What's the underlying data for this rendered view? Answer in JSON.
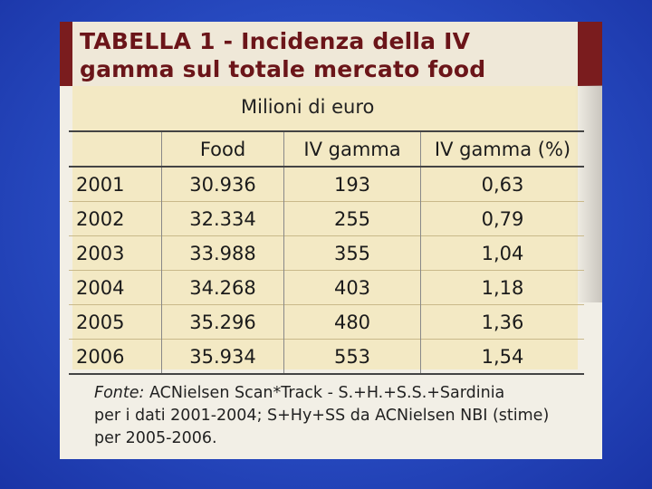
{
  "title": {
    "line1": "TABELLA 1 - Incidenza della IV",
    "line2": "gamma sul totale mercato food"
  },
  "unit_label": "Milioni di euro",
  "table": {
    "headers": [
      "",
      "Food",
      "IV gamma",
      "IV gamma (%)"
    ],
    "rows": [
      [
        "2001",
        "30.936",
        "193",
        "0,63"
      ],
      [
        "2002",
        "32.334",
        "255",
        "0,79"
      ],
      [
        "2003",
        "33.988",
        "355",
        "1,04"
      ],
      [
        "2004",
        "34.268",
        "403",
        "1,18"
      ],
      [
        "2005",
        "35.296",
        "480",
        "1,36"
      ],
      [
        "2006",
        "35.934",
        "553",
        "1,54"
      ]
    ]
  },
  "source": {
    "label": "Fonte:",
    "text_line1": "ACNielsen Scan*Track - S.+H.+S.S.+Sardinia",
    "text_line2": "per i dati 2001-2004; S+Hy+SS da ACNielsen NBI (stime)",
    "text_line3": "per 2005-2006."
  },
  "colors": {
    "slide_background": "#2a4fc6",
    "title_band": "#7a1c1e",
    "title_text": "#6b1519",
    "table_fill": "#f3e9c4",
    "paper": "#f2efe6"
  }
}
